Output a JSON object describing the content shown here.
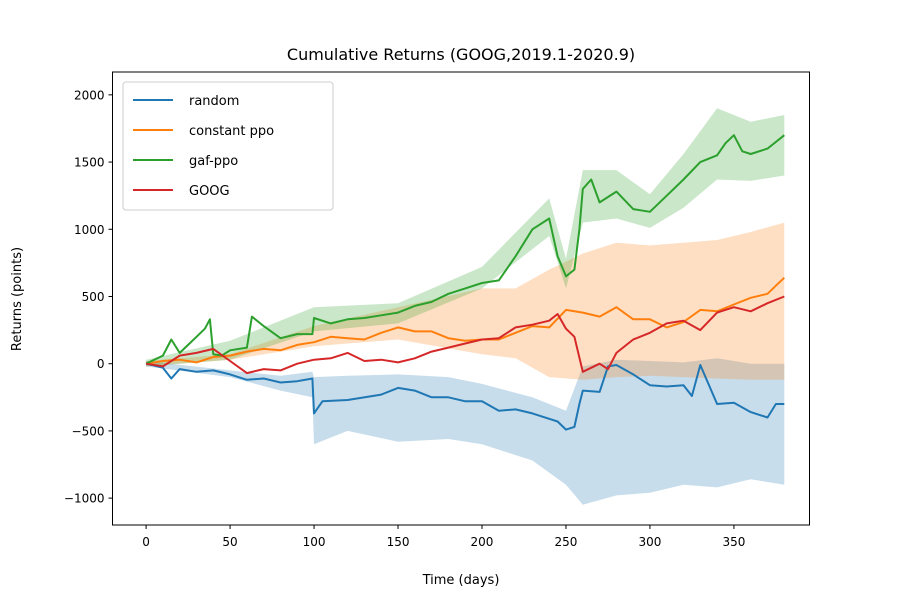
{
  "chart_data": {
    "type": "line",
    "title": "Cumulative Returns (GOOG,2019.1-2020.9)",
    "xlabel": "Time (days)",
    "ylabel": "Returns (points)",
    "xlim": [
      -20,
      395
    ],
    "ylim": [
      -1200,
      2170
    ],
    "xticks": [
      0,
      50,
      100,
      150,
      200,
      250,
      300,
      350
    ],
    "yticks": [
      -1000,
      -500,
      0,
      500,
      1000,
      1500,
      2000
    ],
    "xtick_labels": [
      "0",
      "50",
      "100",
      "150",
      "200",
      "250",
      "300",
      "350"
    ],
    "ytick_labels": [
      "−1000",
      "−500",
      "0",
      "500",
      "1000",
      "1500",
      "2000"
    ],
    "grid": false,
    "legend_position": "top-left",
    "series": [
      {
        "name": "random",
        "color": "#1f77b4",
        "points": [
          [
            0,
            0
          ],
          [
            10,
            -30
          ],
          [
            15,
            -110
          ],
          [
            20,
            -40
          ],
          [
            30,
            -60
          ],
          [
            40,
            -50
          ],
          [
            50,
            -80
          ],
          [
            60,
            -120
          ],
          [
            70,
            -110
          ],
          [
            80,
            -140
          ],
          [
            90,
            -130
          ],
          [
            99,
            -110
          ],
          [
            100,
            -370
          ],
          [
            105,
            -280
          ],
          [
            120,
            -270
          ],
          [
            140,
            -230
          ],
          [
            150,
            -180
          ],
          [
            160,
            -200
          ],
          [
            170,
            -250
          ],
          [
            180,
            -250
          ],
          [
            190,
            -280
          ],
          [
            200,
            -280
          ],
          [
            210,
            -350
          ],
          [
            220,
            -340
          ],
          [
            230,
            -370
          ],
          [
            240,
            -410
          ],
          [
            245,
            -430
          ],
          [
            250,
            -490
          ],
          [
            255,
            -470
          ],
          [
            258,
            -300
          ],
          [
            260,
            -200
          ],
          [
            270,
            -210
          ],
          [
            275,
            -20
          ],
          [
            280,
            -10
          ],
          [
            290,
            -80
          ],
          [
            300,
            -160
          ],
          [
            310,
            -170
          ],
          [
            320,
            -160
          ],
          [
            325,
            -240
          ],
          [
            330,
            -10
          ],
          [
            340,
            -300
          ],
          [
            350,
            -290
          ],
          [
            360,
            -360
          ],
          [
            370,
            -400
          ],
          [
            375,
            -300
          ],
          [
            380,
            -300
          ]
        ],
        "band_lower": [
          [
            0,
            -20
          ],
          [
            50,
            -100
          ],
          [
            80,
            -200
          ],
          [
            99,
            -250
          ],
          [
            100,
            -600
          ],
          [
            120,
            -500
          ],
          [
            150,
            -580
          ],
          [
            180,
            -560
          ],
          [
            200,
            -600
          ],
          [
            230,
            -720
          ],
          [
            250,
            -900
          ],
          [
            260,
            -1050
          ],
          [
            280,
            -980
          ],
          [
            300,
            -960
          ],
          [
            320,
            -900
          ],
          [
            340,
            -920
          ],
          [
            360,
            -860
          ],
          [
            380,
            -900
          ]
        ],
        "band_upper": [
          [
            0,
            20
          ],
          [
            50,
            -50
          ],
          [
            80,
            -90
          ],
          [
            99,
            -60
          ],
          [
            100,
            -100
          ],
          [
            120,
            -90
          ],
          [
            150,
            -80
          ],
          [
            180,
            -100
          ],
          [
            200,
            -150
          ],
          [
            230,
            -250
          ],
          [
            250,
            -350
          ],
          [
            260,
            -20
          ],
          [
            280,
            30
          ],
          [
            300,
            20
          ],
          [
            320,
            10
          ],
          [
            340,
            40
          ],
          [
            360,
            0
          ],
          [
            380,
            0
          ]
        ]
      },
      {
        "name": "constant ppo",
        "color": "#ff7f0e",
        "points": [
          [
            0,
            0
          ],
          [
            10,
            20
          ],
          [
            20,
            30
          ],
          [
            30,
            10
          ],
          [
            40,
            50
          ],
          [
            50,
            60
          ],
          [
            60,
            90
          ],
          [
            70,
            110
          ],
          [
            80,
            100
          ],
          [
            90,
            140
          ],
          [
            100,
            160
          ],
          [
            110,
            200
          ],
          [
            120,
            190
          ],
          [
            130,
            180
          ],
          [
            140,
            230
          ],
          [
            150,
            270
          ],
          [
            160,
            240
          ],
          [
            170,
            240
          ],
          [
            180,
            190
          ],
          [
            190,
            170
          ],
          [
            200,
            180
          ],
          [
            210,
            180
          ],
          [
            220,
            230
          ],
          [
            230,
            280
          ],
          [
            240,
            270
          ],
          [
            250,
            400
          ],
          [
            260,
            380
          ],
          [
            270,
            350
          ],
          [
            280,
            420
          ],
          [
            290,
            330
          ],
          [
            300,
            330
          ],
          [
            310,
            270
          ],
          [
            320,
            310
          ],
          [
            330,
            400
          ],
          [
            340,
            390
          ],
          [
            350,
            440
          ],
          [
            360,
            490
          ],
          [
            370,
            520
          ],
          [
            375,
            580
          ],
          [
            380,
            640
          ]
        ],
        "band_lower": [
          [
            0,
            -20
          ],
          [
            50,
            30
          ],
          [
            100,
            130
          ],
          [
            150,
            180
          ],
          [
            200,
            70
          ],
          [
            220,
            40
          ],
          [
            240,
            -100
          ],
          [
            260,
            -120
          ],
          [
            280,
            -100
          ],
          [
            300,
            -90
          ],
          [
            320,
            -100
          ],
          [
            340,
            -110
          ],
          [
            360,
            -120
          ],
          [
            380,
            -120
          ]
        ],
        "band_upper": [
          [
            0,
            20
          ],
          [
            50,
            70
          ],
          [
            100,
            280
          ],
          [
            150,
            420
          ],
          [
            200,
            560
          ],
          [
            220,
            560
          ],
          [
            240,
            700
          ],
          [
            260,
            820
          ],
          [
            280,
            900
          ],
          [
            300,
            880
          ],
          [
            320,
            900
          ],
          [
            340,
            920
          ],
          [
            360,
            980
          ],
          [
            380,
            1050
          ]
        ]
      },
      {
        "name": "gaf-ppo",
        "color": "#2ca02c",
        "points": [
          [
            0,
            0
          ],
          [
            10,
            60
          ],
          [
            15,
            180
          ],
          [
            20,
            80
          ],
          [
            25,
            140
          ],
          [
            30,
            200
          ],
          [
            35,
            260
          ],
          [
            38,
            330
          ],
          [
            40,
            70
          ],
          [
            45,
            60
          ],
          [
            50,
            100
          ],
          [
            60,
            120
          ],
          [
            63,
            350
          ],
          [
            70,
            280
          ],
          [
            80,
            190
          ],
          [
            90,
            220
          ],
          [
            99,
            220
          ],
          [
            100,
            340
          ],
          [
            110,
            300
          ],
          [
            120,
            330
          ],
          [
            130,
            340
          ],
          [
            140,
            360
          ],
          [
            150,
            380
          ],
          [
            160,
            430
          ],
          [
            170,
            460
          ],
          [
            180,
            520
          ],
          [
            190,
            560
          ],
          [
            200,
            600
          ],
          [
            210,
            620
          ],
          [
            220,
            800
          ],
          [
            230,
            1000
          ],
          [
            240,
            1080
          ],
          [
            245,
            800
          ],
          [
            250,
            650
          ],
          [
            255,
            700
          ],
          [
            258,
            1000
          ],
          [
            260,
            1300
          ],
          [
            265,
            1370
          ],
          [
            270,
            1200
          ],
          [
            280,
            1280
          ],
          [
            290,
            1150
          ],
          [
            300,
            1130
          ],
          [
            310,
            1250
          ],
          [
            320,
            1370
          ],
          [
            330,
            1500
          ],
          [
            340,
            1550
          ],
          [
            345,
            1640
          ],
          [
            350,
            1700
          ],
          [
            355,
            1580
          ],
          [
            360,
            1560
          ],
          [
            370,
            1600
          ],
          [
            380,
            1700
          ]
        ],
        "band_lower": [
          [
            0,
            -20
          ],
          [
            50,
            30
          ],
          [
            100,
            240
          ],
          [
            150,
            300
          ],
          [
            200,
            560
          ],
          [
            240,
            950
          ],
          [
            250,
            560
          ],
          [
            260,
            1050
          ],
          [
            280,
            1080
          ],
          [
            300,
            1010
          ],
          [
            320,
            1160
          ],
          [
            340,
            1370
          ],
          [
            360,
            1360
          ],
          [
            380,
            1400
          ]
        ],
        "band_upper": [
          [
            0,
            30
          ],
          [
            50,
            170
          ],
          [
            100,
            420
          ],
          [
            150,
            450
          ],
          [
            200,
            720
          ],
          [
            240,
            1230
          ],
          [
            250,
            780
          ],
          [
            260,
            1440
          ],
          [
            280,
            1440
          ],
          [
            300,
            1260
          ],
          [
            320,
            1560
          ],
          [
            340,
            1900
          ],
          [
            360,
            1800
          ],
          [
            380,
            1850
          ]
        ]
      },
      {
        "name": "GOOG",
        "color": "#d62728",
        "points": [
          [
            0,
            0
          ],
          [
            10,
            -20
          ],
          [
            20,
            60
          ],
          [
            30,
            80
          ],
          [
            40,
            110
          ],
          [
            50,
            20
          ],
          [
            60,
            -70
          ],
          [
            70,
            -40
          ],
          [
            80,
            -50
          ],
          [
            90,
            0
          ],
          [
            100,
            30
          ],
          [
            110,
            40
          ],
          [
            120,
            80
          ],
          [
            130,
            20
          ],
          [
            140,
            30
          ],
          [
            150,
            10
          ],
          [
            160,
            40
          ],
          [
            170,
            90
          ],
          [
            180,
            120
          ],
          [
            190,
            150
          ],
          [
            200,
            180
          ],
          [
            210,
            190
          ],
          [
            220,
            270
          ],
          [
            230,
            290
          ],
          [
            240,
            320
          ],
          [
            245,
            370
          ],
          [
            250,
            260
          ],
          [
            255,
            200
          ],
          [
            260,
            -60
          ],
          [
            270,
            0
          ],
          [
            275,
            -40
          ],
          [
            280,
            80
          ],
          [
            290,
            180
          ],
          [
            300,
            230
          ],
          [
            310,
            300
          ],
          [
            320,
            320
          ],
          [
            330,
            250
          ],
          [
            340,
            380
          ],
          [
            350,
            420
          ],
          [
            360,
            390
          ],
          [
            370,
            450
          ],
          [
            380,
            500
          ]
        ]
      }
    ]
  }
}
